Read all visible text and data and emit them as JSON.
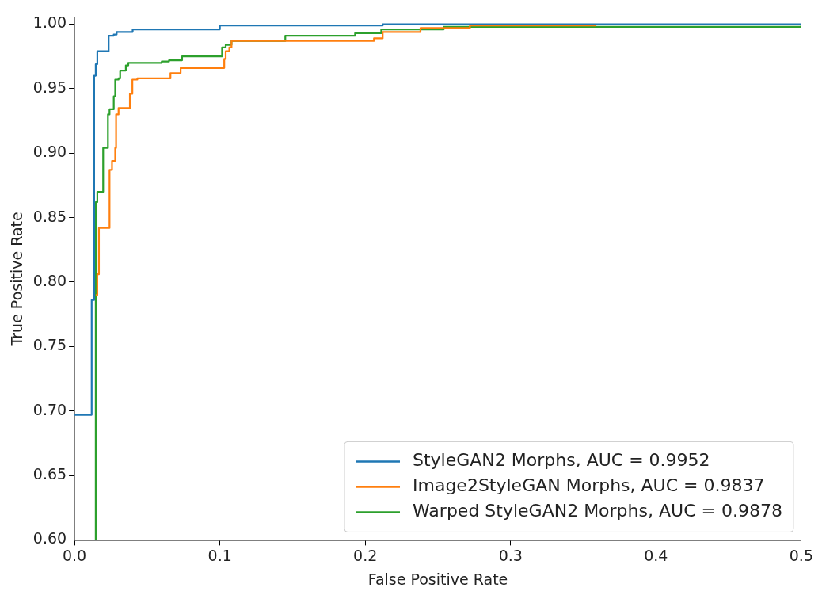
{
  "chart_data": {
    "type": "step",
    "xlabel": "False Positive Rate",
    "ylabel": "True Positive Rate",
    "xlim": [
      0,
      0.5
    ],
    "ylim": [
      0.6,
      1.005
    ],
    "xticks": [
      {
        "value": 0,
        "label": "0.0"
      },
      0.1,
      0.2,
      0.3,
      0.4,
      0.5
    ],
    "yticks": [
      {
        "value": 0.6,
        "label": "0.60"
      },
      {
        "value": 0.65,
        "label": "0.65"
      },
      {
        "value": 0.7,
        "label": "0.70"
      },
      {
        "value": 0.75,
        "label": "0.75"
      },
      {
        "value": 0.8,
        "label": "0.80"
      },
      {
        "value": 0.85,
        "label": "0.85"
      },
      {
        "value": 0.9,
        "label": "0.90"
      },
      {
        "value": 0.95,
        "label": "0.95"
      },
      {
        "value": 1.0,
        "label": "1.00"
      }
    ],
    "legend": "bottom right",
    "grid": false,
    "series": [
      {
        "name": "StyleGAN2 Morphs, AUC = 0.9952",
        "color": "#1f77b4",
        "x": [
          0,
          0.0118,
          0.0135,
          0.0146,
          0.0157,
          0.0235,
          0.027,
          0.029,
          0.04,
          0.1,
          0.212,
          0.5
        ],
        "values": [
          0.697,
          0.786,
          0.96,
          0.969,
          0.979,
          0.991,
          0.992,
          0.994,
          0.996,
          0.999,
          1.0,
          1.0
        ]
      },
      {
        "name": "Image2StyleGAN Morphs, AUC = 0.9837",
        "color": "#ff7f0e",
        "x": [
          0.0146,
          0.0157,
          0.0168,
          0.0241,
          0.0258,
          0.028,
          0.0286,
          0.0303,
          0.0381,
          0.0398,
          0.0432,
          0.066,
          0.073,
          0.076,
          0.103,
          0.104,
          0.1065,
          0.108,
          0.206,
          0.212,
          0.238,
          0.272,
          0.359
        ],
        "values": [
          0.79,
          0.806,
          0.842,
          0.887,
          0.894,
          0.904,
          0.93,
          0.935,
          0.946,
          0.957,
          0.958,
          0.962,
          0.966,
          0.966,
          0.973,
          0.979,
          0.982,
          0.987,
          0.989,
          0.994,
          0.997,
          0.999,
          0.999
        ]
      },
      {
        "name": "Warped StyleGAN2 Morphs, AUC = 0.9878",
        "color": "#2ca02c",
        "x": [
          0.014,
          0.0146,
          0.0157,
          0.0197,
          0.023,
          0.0241,
          0.027,
          0.028,
          0.0303,
          0.0314,
          0.0353,
          0.037,
          0.06,
          0.065,
          0.074,
          0.1015,
          0.104,
          0.108,
          0.145,
          0.193,
          0.211,
          0.254,
          0.5
        ],
        "values": [
          0.6,
          0.862,
          0.87,
          0.904,
          0.93,
          0.934,
          0.944,
          0.957,
          0.958,
          0.964,
          0.968,
          0.97,
          0.971,
          0.972,
          0.975,
          0.982,
          0.984,
          0.987,
          0.991,
          0.993,
          0.996,
          0.998,
          1.0
        ]
      }
    ]
  }
}
